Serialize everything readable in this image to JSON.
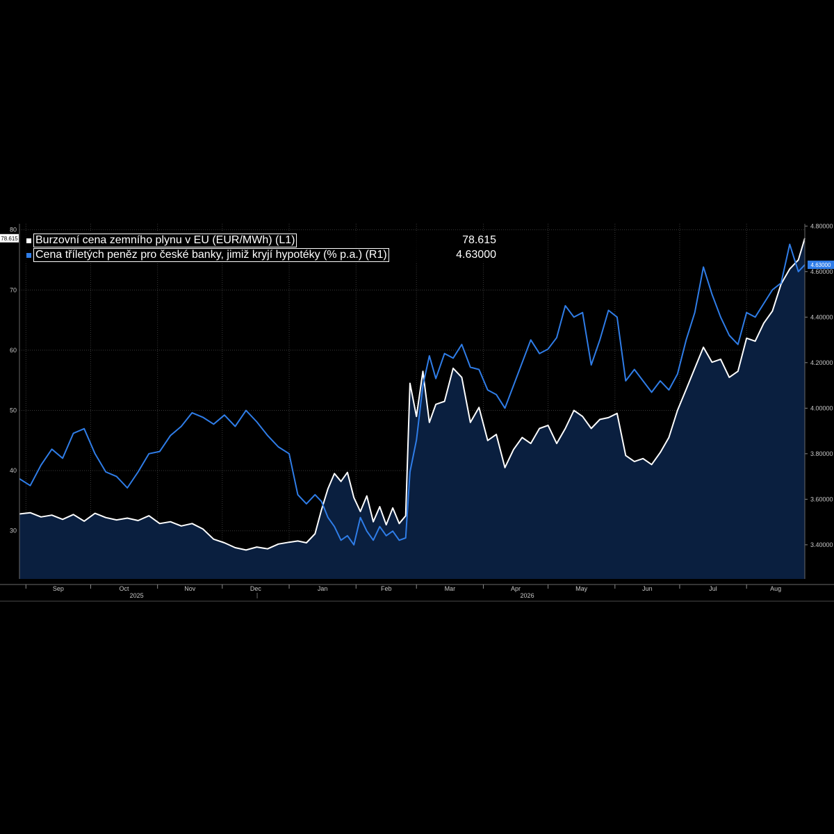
{
  "chart_data": {
    "type": "line",
    "title": "",
    "xlabel": "",
    "x_range": [
      "2025-08-29",
      "2026-08-28"
    ],
    "x_ticks": [
      {
        "label": "Sep",
        "date": "2025-09-01"
      },
      {
        "label": "Oct",
        "date": "2025-10-01"
      },
      {
        "label": "Nov",
        "date": "2025-11-01"
      },
      {
        "label": "Dec",
        "date": "2025-12-01"
      },
      {
        "label": "Jan",
        "date": "2026-01-01"
      },
      {
        "label": "Feb",
        "date": "2026-02-01"
      },
      {
        "label": "Mar",
        "date": "2026-03-01"
      },
      {
        "label": "Apr",
        "date": "2026-04-01"
      },
      {
        "label": "May",
        "date": "2026-05-01"
      },
      {
        "label": "Jun",
        "date": "2026-06-01"
      },
      {
        "label": "Jul",
        "date": "2026-07-01"
      },
      {
        "label": "Aug",
        "date": "2026-08-01"
      }
    ],
    "year_labels": [
      {
        "label": "2025",
        "date": "2025-11-01"
      },
      {
        "label": "2026",
        "date": "2026-05-01"
      }
    ],
    "left_axis": {
      "ylim": [
        22,
        81
      ],
      "ticks": [
        "30",
        "40",
        "50",
        "60",
        "70",
        "80"
      ]
    },
    "right_axis": {
      "ylim": [
        3.25,
        4.81
      ],
      "ticks": [
        "3.40000",
        "3.60000",
        "3.80000",
        "4.00000",
        "4.20000",
        "4.40000",
        "4.60000",
        "4.80000"
      ]
    },
    "grid": true,
    "legend_position": "top-left",
    "series": [
      {
        "name": "Burzovní cena zemního plynu v EU (EUR/MWh) (L1)",
        "axis": "left",
        "color": "#ffffff",
        "area_fill": "#0a1f3f",
        "last_value": "78.615",
        "flag_value": "78.615",
        "points": [
          [
            "2025-08-29",
            32.8
          ],
          [
            "2025-09-03",
            33.0
          ],
          [
            "2025-09-08",
            32.3
          ],
          [
            "2025-09-13",
            32.6
          ],
          [
            "2025-09-18",
            31.9
          ],
          [
            "2025-09-23",
            32.7
          ],
          [
            "2025-09-28",
            31.6
          ],
          [
            "2025-10-03",
            32.9
          ],
          [
            "2025-10-08",
            32.2
          ],
          [
            "2025-10-13",
            31.8
          ],
          [
            "2025-10-18",
            32.1
          ],
          [
            "2025-10-23",
            31.7
          ],
          [
            "2025-10-28",
            32.5
          ],
          [
            "2025-11-02",
            31.2
          ],
          [
            "2025-11-07",
            31.5
          ],
          [
            "2025-11-12",
            30.8
          ],
          [
            "2025-11-17",
            31.2
          ],
          [
            "2025-11-22",
            30.3
          ],
          [
            "2025-11-27",
            28.6
          ],
          [
            "2025-12-02",
            28.0
          ],
          [
            "2025-12-07",
            27.2
          ],
          [
            "2025-12-12",
            26.8
          ],
          [
            "2025-12-17",
            27.3
          ],
          [
            "2025-12-22",
            27.0
          ],
          [
            "2025-12-27",
            27.8
          ],
          [
            "2026-01-01",
            28.1
          ],
          [
            "2026-01-05",
            28.3
          ],
          [
            "2026-01-09",
            28.0
          ],
          [
            "2026-01-13",
            29.5
          ],
          [
            "2026-01-16",
            33.5
          ],
          [
            "2026-01-19",
            37.0
          ],
          [
            "2026-01-22",
            39.5
          ],
          [
            "2026-01-25",
            38.2
          ],
          [
            "2026-01-28",
            39.7
          ],
          [
            "2026-01-31",
            35.5
          ],
          [
            "2026-02-03",
            33.2
          ],
          [
            "2026-02-06",
            35.8
          ],
          [
            "2026-02-09",
            31.5
          ],
          [
            "2026-02-12",
            34.0
          ],
          [
            "2026-02-15",
            31.0
          ],
          [
            "2026-02-18",
            33.8
          ],
          [
            "2026-02-21",
            31.2
          ],
          [
            "2026-02-24",
            32.5
          ],
          [
            "2026-02-26",
            54.5
          ],
          [
            "2026-03-01",
            49.0
          ],
          [
            "2026-03-04",
            56.5
          ],
          [
            "2026-03-07",
            48.0
          ],
          [
            "2026-03-10",
            51.0
          ],
          [
            "2026-03-14",
            51.5
          ],
          [
            "2026-03-18",
            57.0
          ],
          [
            "2026-03-22",
            55.5
          ],
          [
            "2026-03-26",
            48.0
          ],
          [
            "2026-03-30",
            50.5
          ],
          [
            "2026-04-03",
            45.0
          ],
          [
            "2026-04-07",
            46.0
          ],
          [
            "2026-04-11",
            40.5
          ],
          [
            "2026-04-15",
            43.5
          ],
          [
            "2026-04-19",
            45.5
          ],
          [
            "2026-04-23",
            44.5
          ],
          [
            "2026-04-27",
            47.0
          ],
          [
            "2026-05-01",
            47.5
          ],
          [
            "2026-05-05",
            44.5
          ],
          [
            "2026-05-09",
            47.0
          ],
          [
            "2026-05-13",
            50.0
          ],
          [
            "2026-05-17",
            49.0
          ],
          [
            "2026-05-21",
            47.0
          ],
          [
            "2026-05-25",
            48.5
          ],
          [
            "2026-05-29",
            48.8
          ],
          [
            "2026-06-02",
            49.5
          ],
          [
            "2026-06-06",
            42.5
          ],
          [
            "2026-06-10",
            41.5
          ],
          [
            "2026-06-14",
            42.0
          ],
          [
            "2026-06-18",
            41.0
          ],
          [
            "2026-06-22",
            43.0
          ],
          [
            "2026-06-26",
            45.5
          ],
          [
            "2026-06-30",
            50.0
          ],
          [
            "2026-07-04",
            53.5
          ],
          [
            "2026-07-08",
            57.0
          ],
          [
            "2026-07-12",
            60.5
          ],
          [
            "2026-07-16",
            58.0
          ],
          [
            "2026-07-20",
            58.5
          ],
          [
            "2026-07-24",
            55.5
          ],
          [
            "2026-07-28",
            56.5
          ],
          [
            "2026-08-01",
            62.0
          ],
          [
            "2026-08-05",
            61.5
          ],
          [
            "2026-08-09",
            64.5
          ],
          [
            "2026-08-13",
            66.5
          ],
          [
            "2026-08-17",
            71.0
          ],
          [
            "2026-08-21",
            73.5
          ],
          [
            "2026-08-25",
            75.0
          ],
          [
            "2026-08-28",
            78.6
          ]
        ]
      },
      {
        "name": "Cena tříletých peněz pro české banky, jimiž kryjí hypotéky (% p.a.) (R1)",
        "axis": "right",
        "color": "#2f7de8",
        "last_value": "4.63000",
        "flag_value": "4.63000",
        "points": [
          [
            "2025-08-29",
            3.69
          ],
          [
            "2025-09-03",
            3.66
          ],
          [
            "2025-09-08",
            3.75
          ],
          [
            "2025-09-13",
            3.82
          ],
          [
            "2025-09-18",
            3.78
          ],
          [
            "2025-09-23",
            3.89
          ],
          [
            "2025-09-28",
            3.91
          ],
          [
            "2025-10-03",
            3.8
          ],
          [
            "2025-10-08",
            3.72
          ],
          [
            "2025-10-13",
            3.7
          ],
          [
            "2025-10-18",
            3.65
          ],
          [
            "2025-10-23",
            3.72
          ],
          [
            "2025-10-28",
            3.8
          ],
          [
            "2025-11-02",
            3.81
          ],
          [
            "2025-11-07",
            3.88
          ],
          [
            "2025-11-12",
            3.92
          ],
          [
            "2025-11-17",
            3.98
          ],
          [
            "2025-11-22",
            3.96
          ],
          [
            "2025-11-27",
            3.93
          ],
          [
            "2025-12-02",
            3.97
          ],
          [
            "2025-12-07",
            3.92
          ],
          [
            "2025-12-12",
            3.99
          ],
          [
            "2025-12-17",
            3.94
          ],
          [
            "2025-12-22",
            3.88
          ],
          [
            "2025-12-27",
            3.83
          ],
          [
            "2026-01-01",
            3.8
          ],
          [
            "2026-01-05",
            3.62
          ],
          [
            "2026-01-09",
            3.58
          ],
          [
            "2026-01-13",
            3.62
          ],
          [
            "2026-01-16",
            3.59
          ],
          [
            "2026-01-19",
            3.52
          ],
          [
            "2026-01-22",
            3.48
          ],
          [
            "2026-01-25",
            3.42
          ],
          [
            "2026-01-28",
            3.44
          ],
          [
            "2026-01-31",
            3.4
          ],
          [
            "2026-02-03",
            3.52
          ],
          [
            "2026-02-06",
            3.46
          ],
          [
            "2026-02-09",
            3.42
          ],
          [
            "2026-02-12",
            3.48
          ],
          [
            "2026-02-15",
            3.44
          ],
          [
            "2026-02-18",
            3.46
          ],
          [
            "2026-02-21",
            3.42
          ],
          [
            "2026-02-24",
            3.43
          ],
          [
            "2026-02-26",
            3.72
          ],
          [
            "2026-03-01",
            3.86
          ],
          [
            "2026-03-04",
            4.1
          ],
          [
            "2026-03-07",
            4.23
          ],
          [
            "2026-03-10",
            4.13
          ],
          [
            "2026-03-14",
            4.24
          ],
          [
            "2026-03-18",
            4.22
          ],
          [
            "2026-03-22",
            4.28
          ],
          [
            "2026-03-26",
            4.18
          ],
          [
            "2026-03-30",
            4.17
          ],
          [
            "2026-04-03",
            4.08
          ],
          [
            "2026-04-07",
            4.06
          ],
          [
            "2026-04-11",
            4.0
          ],
          [
            "2026-04-15",
            4.1
          ],
          [
            "2026-04-19",
            4.2
          ],
          [
            "2026-04-23",
            4.3
          ],
          [
            "2026-04-27",
            4.24
          ],
          [
            "2026-05-01",
            4.26
          ],
          [
            "2026-05-05",
            4.31
          ],
          [
            "2026-05-09",
            4.45
          ],
          [
            "2026-05-13",
            4.4
          ],
          [
            "2026-05-17",
            4.42
          ],
          [
            "2026-05-21",
            4.19
          ],
          [
            "2026-05-25",
            4.3
          ],
          [
            "2026-05-29",
            4.43
          ],
          [
            "2026-06-02",
            4.4
          ],
          [
            "2026-06-06",
            4.12
          ],
          [
            "2026-06-10",
            4.17
          ],
          [
            "2026-06-14",
            4.12
          ],
          [
            "2026-06-18",
            4.07
          ],
          [
            "2026-06-22",
            4.12
          ],
          [
            "2026-06-26",
            4.08
          ],
          [
            "2026-06-30",
            4.15
          ],
          [
            "2026-07-04",
            4.3
          ],
          [
            "2026-07-08",
            4.42
          ],
          [
            "2026-07-12",
            4.62
          ],
          [
            "2026-07-16",
            4.5
          ],
          [
            "2026-07-20",
            4.4
          ],
          [
            "2026-07-24",
            4.32
          ],
          [
            "2026-07-28",
            4.28
          ],
          [
            "2026-08-01",
            4.42
          ],
          [
            "2026-08-05",
            4.4
          ],
          [
            "2026-08-09",
            4.46
          ],
          [
            "2026-08-13",
            4.52
          ],
          [
            "2026-08-17",
            4.55
          ],
          [
            "2026-08-21",
            4.72
          ],
          [
            "2026-08-25",
            4.6
          ],
          [
            "2026-08-28",
            4.63
          ]
        ]
      }
    ]
  },
  "colors": {
    "background": "#000000",
    "grid": "#3a3a3a",
    "axis_text": "#c8c8c8",
    "gas_line": "#ffffff",
    "rate_line": "#2f7de8",
    "area_fill": "#0a1f3f"
  }
}
